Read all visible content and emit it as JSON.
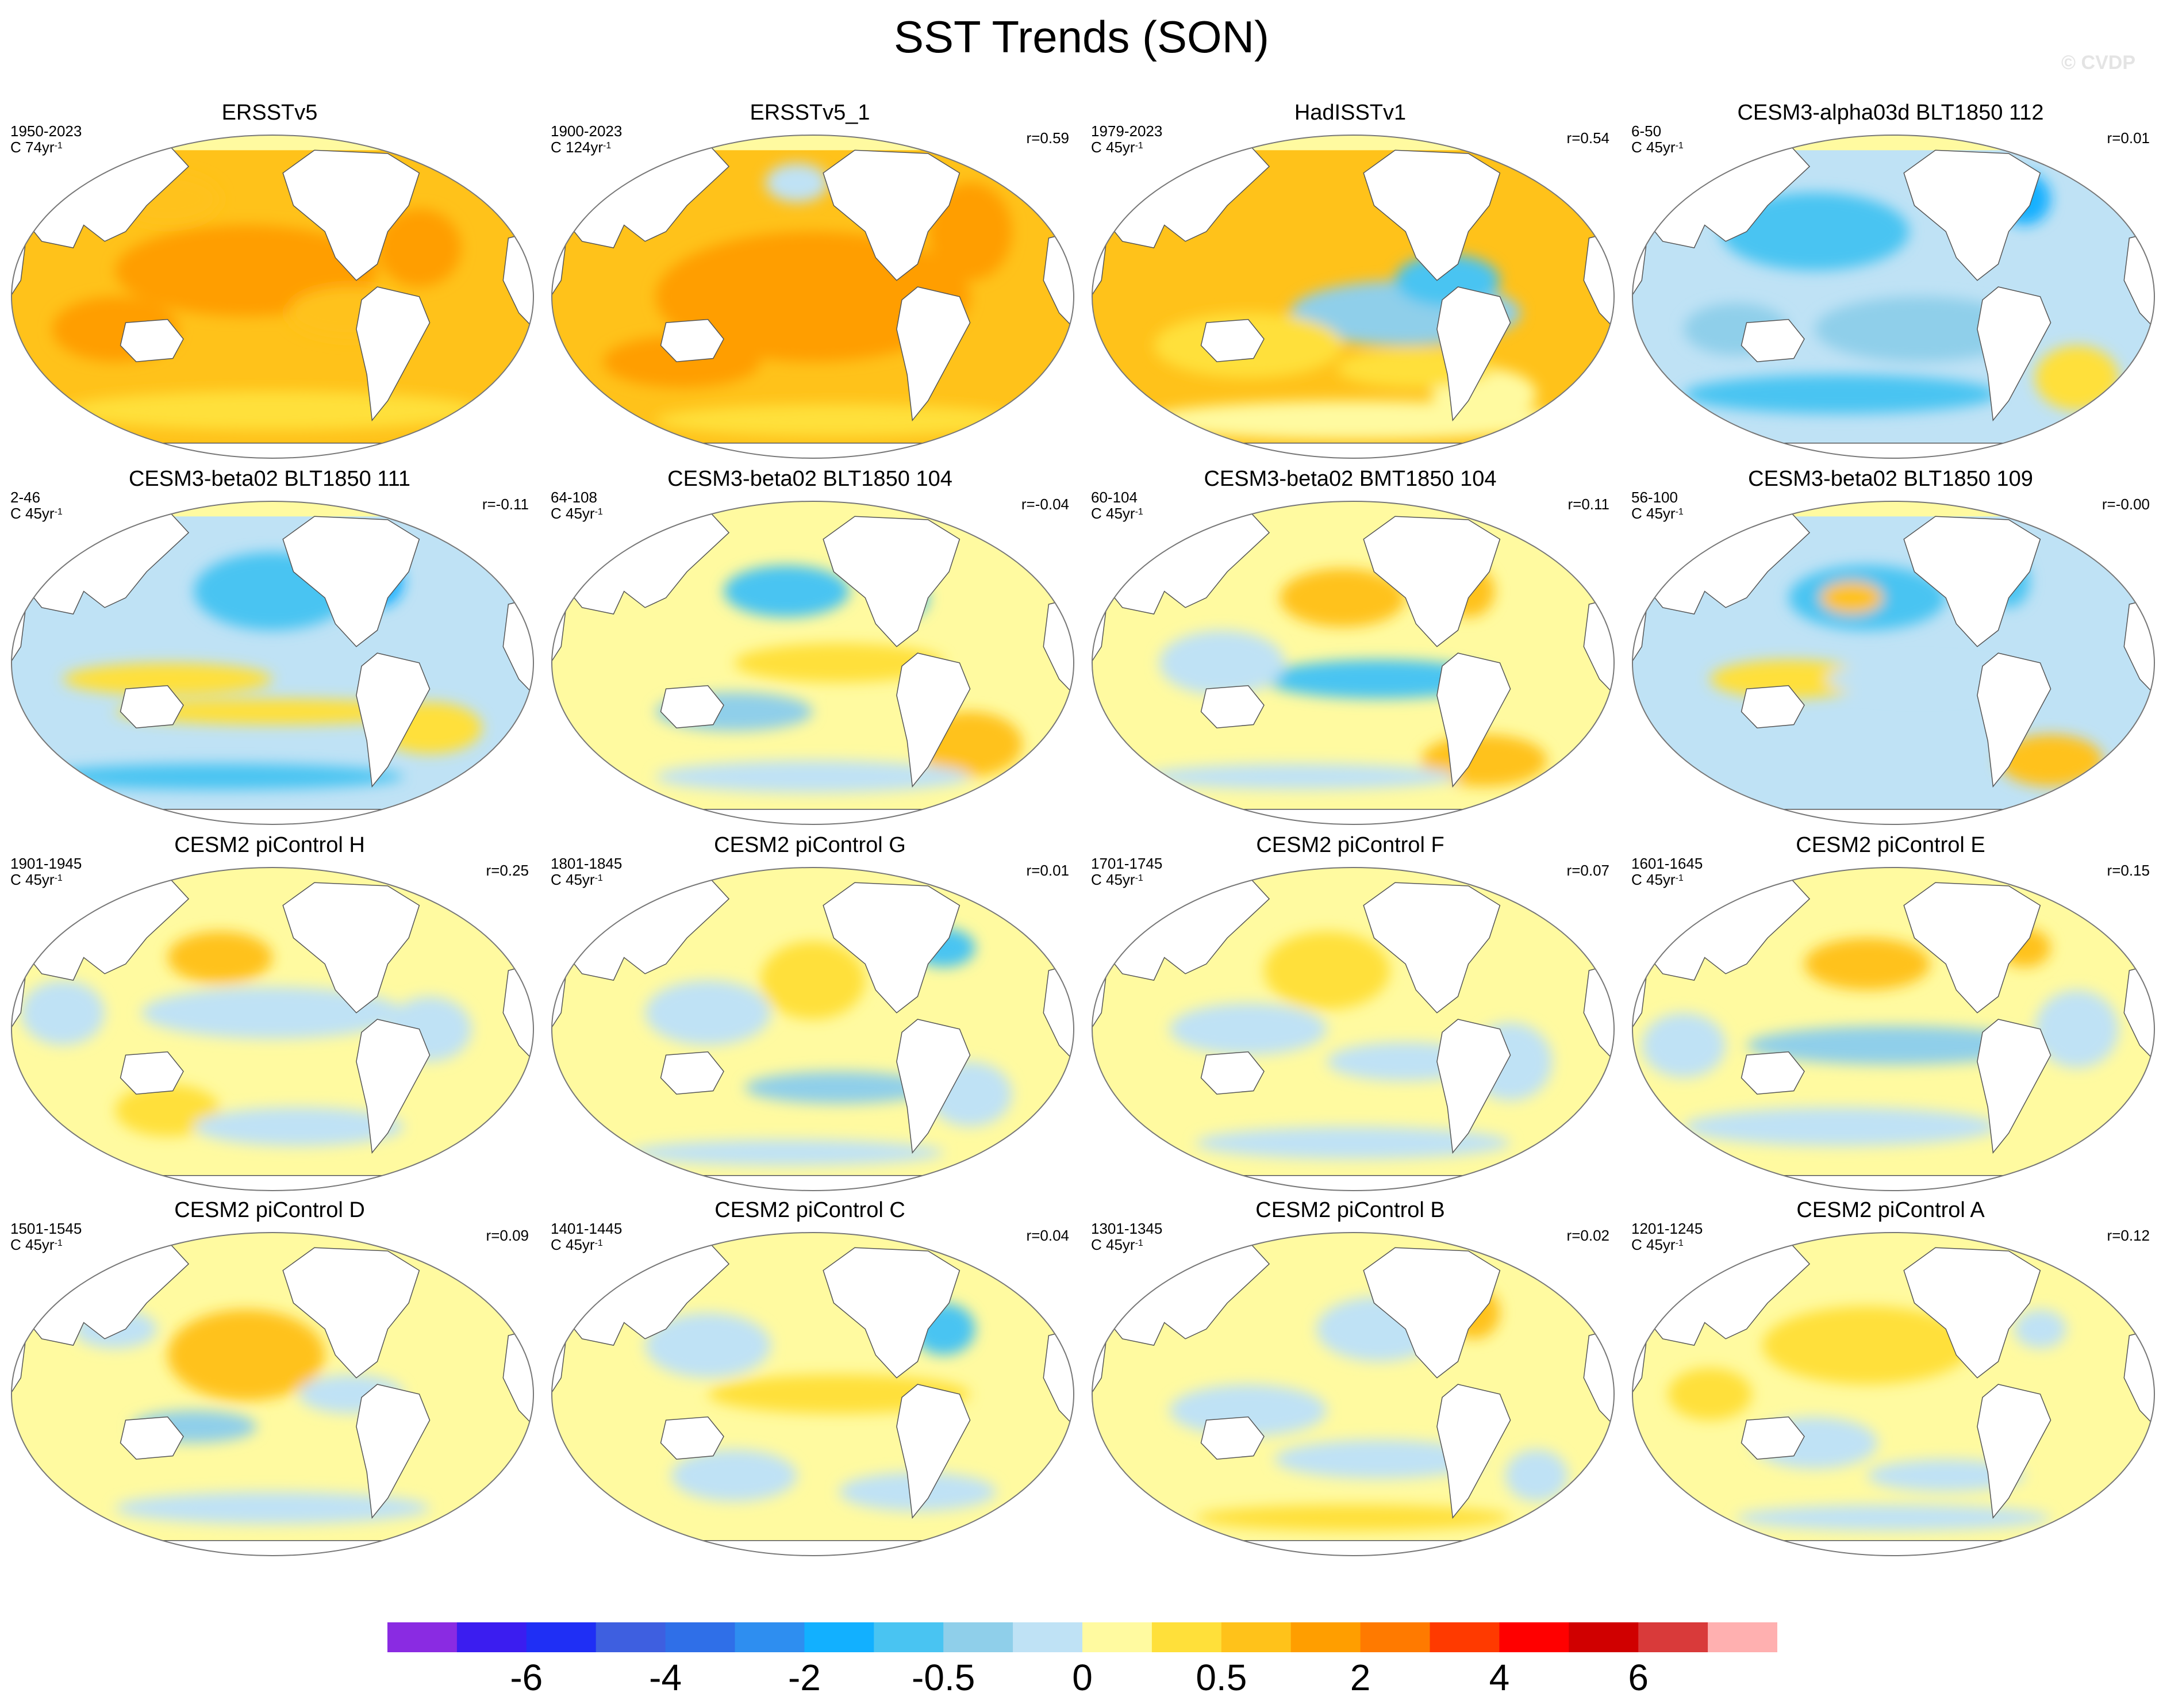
{
  "title": "SST Trends (SON)",
  "watermark": "© CVDP",
  "panels": [
    {
      "title": "ERSSTv5",
      "years": "1950-2023",
      "length_prefix": "C 74yr",
      "length_sup": "-1",
      "corr": "",
      "pattern": "obs1"
    },
    {
      "title": "ERSSTv5_1",
      "years": "1900-2023",
      "length_prefix": "C 124yr",
      "length_sup": "-1",
      "corr": "r=0.59",
      "pattern": "obs2"
    },
    {
      "title": "HadISSTv1",
      "years": "1979-2023",
      "length_prefix": "C 45yr",
      "length_sup": "-1",
      "corr": "r=0.54",
      "pattern": "obs3"
    },
    {
      "title": "CESM3-alpha03d BLT1850 112",
      "years": "6-50",
      "length_prefix": "C 45yr",
      "length_sup": "-1",
      "corr": "r=0.01",
      "pattern": "cool"
    },
    {
      "title": "CESM3-beta02 BLT1850 111",
      "years": "2-46",
      "length_prefix": "C 45yr",
      "length_sup": "-1",
      "corr": "r=-0.11",
      "pattern": "coolnp"
    },
    {
      "title": "CESM3-beta02 BLT1850 104",
      "years": "64-108",
      "length_prefix": "C 45yr",
      "length_sup": "-1",
      "corr": "r=-0.04",
      "pattern": "mixed_a"
    },
    {
      "title": "CESM3-beta02 BMT1850 104",
      "years": "60-104",
      "length_prefix": "C 45yr",
      "length_sup": "-1",
      "corr": "r=0.11",
      "pattern": "lanina"
    },
    {
      "title": "CESM3-beta02 BLT1850 109",
      "years": "56-100",
      "length_prefix": "C 45yr",
      "length_sup": "-1",
      "corr": "r=-0.00",
      "pattern": "coolnp2"
    },
    {
      "title": "CESM2 piControl H",
      "years": "1901-1945",
      "length_prefix": "C 45yr",
      "length_sup": "-1",
      "corr": "r=0.25",
      "pattern": "mixed_b"
    },
    {
      "title": "CESM2 piControl G",
      "years": "1801-1845",
      "length_prefix": "C 45yr",
      "length_sup": "-1",
      "corr": "r=0.01",
      "pattern": "mixed_c"
    },
    {
      "title": "CESM2 piControl F",
      "years": "1701-1745",
      "length_prefix": "C 45yr",
      "length_sup": "-1",
      "corr": "r=0.07",
      "pattern": "mixed_d"
    },
    {
      "title": "CESM2 piControl E",
      "years": "1601-1645",
      "length_prefix": "C 45yr",
      "length_sup": "-1",
      "corr": "r=0.15",
      "pattern": "lanina2"
    },
    {
      "title": "CESM2 piControl D",
      "years": "1501-1545",
      "length_prefix": "C 45yr",
      "length_sup": "-1",
      "corr": "r=0.09",
      "pattern": "elnino"
    },
    {
      "title": "CESM2 piControl C",
      "years": "1401-1445",
      "length_prefix": "C 45yr",
      "length_sup": "-1",
      "corr": "r=0.04",
      "pattern": "mixed_e"
    },
    {
      "title": "CESM2 piControl B",
      "years": "1301-1345",
      "length_prefix": "C 45yr",
      "length_sup": "-1",
      "corr": "r=0.02",
      "pattern": "mixed_f"
    },
    {
      "title": "CESM2 piControl A",
      "years": "1201-1245",
      "length_prefix": "C 45yr",
      "length_sup": "-1",
      "corr": "r=0.12",
      "pattern": "mixed_g"
    }
  ],
  "colorbar": {
    "colors": [
      "#8a2be2",
      "#3b1df0",
      "#1f2ff5",
      "#3e5fe0",
      "#2f6fe8",
      "#2e8ef0",
      "#12b0ff",
      "#49c4f2",
      "#8fcfea",
      "#bfe2f5",
      "#fffaa0",
      "#ffe03a",
      "#ffc21a",
      "#ff9e00",
      "#ff7a00",
      "#ff3a00",
      "#ff0000",
      "#d00000",
      "#d93a3a",
      "#ffb0b0"
    ],
    "labels": [
      "-6",
      "-4",
      "-2",
      "-0.5",
      "0",
      "0.5",
      "2",
      "4",
      "6"
    ]
  }
}
